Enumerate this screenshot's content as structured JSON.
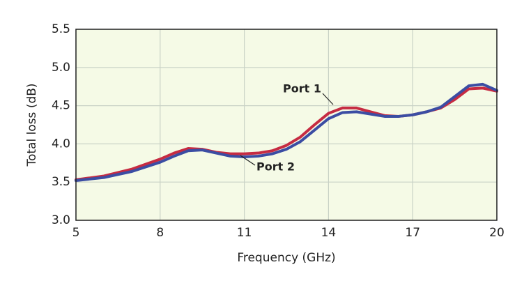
{
  "chart_data": {
    "type": "line",
    "x_label": "Frequency (GHz)",
    "y_label": "Total loss (dB)",
    "x": [
      5,
      6,
      7,
      8,
      8.5,
      9,
      9.5,
      10,
      10.5,
      11,
      11.5,
      12,
      12.5,
      13,
      13.5,
      14,
      14.5,
      15,
      15.5,
      16,
      16.5,
      17,
      17.5,
      18,
      18.5,
      19,
      19.5,
      20
    ],
    "series": [
      {
        "name": "Port 1",
        "color": "#c62b42",
        "values": [
          3.53,
          3.58,
          3.67,
          3.8,
          3.88,
          3.94,
          3.93,
          3.89,
          3.87,
          3.87,
          3.88,
          3.91,
          3.98,
          4.09,
          4.25,
          4.4,
          4.47,
          4.47,
          4.42,
          4.37,
          4.36,
          4.38,
          4.42,
          4.47,
          4.58,
          4.72,
          4.73,
          4.69
        ]
      },
      {
        "name": "Port 2",
        "color": "#3b4da3",
        "values": [
          3.52,
          3.56,
          3.64,
          3.76,
          3.84,
          3.91,
          3.92,
          3.88,
          3.84,
          3.83,
          3.84,
          3.87,
          3.93,
          4.03,
          4.18,
          4.33,
          4.41,
          4.42,
          4.39,
          4.36,
          4.36,
          4.38,
          4.42,
          4.48,
          4.62,
          4.76,
          4.78,
          4.7
        ]
      }
    ],
    "xlim": [
      5,
      20
    ],
    "xticks": [
      5,
      8,
      11,
      14,
      17,
      20
    ],
    "ylim": [
      3.0,
      5.5
    ],
    "yticks": [
      {
        "value": 3.0,
        "label": "3.0"
      },
      3.5,
      {
        "value": 4.0,
        "label": "4.0"
      },
      4.5,
      {
        "value": 5.0,
        "label": "5.0"
      },
      5.5
    ],
    "grid": true
  }
}
